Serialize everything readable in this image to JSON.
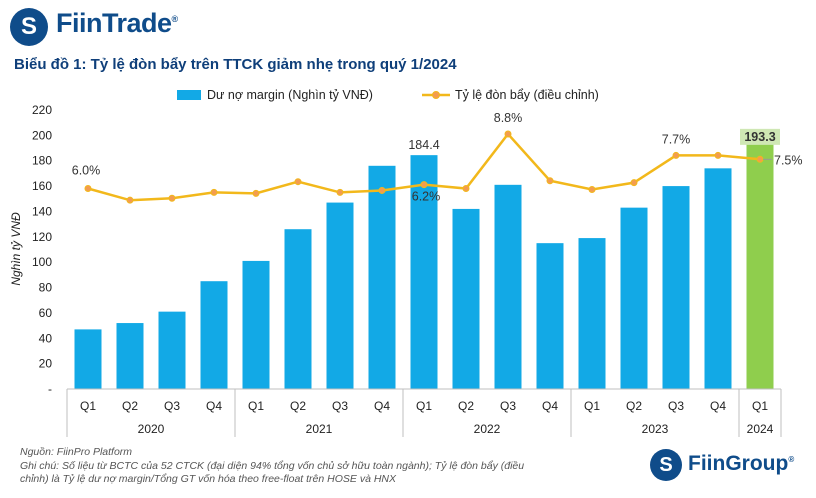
{
  "header": {
    "logo_mark": "S",
    "logo_text": "FiinTrade",
    "logo_reg": "®"
  },
  "chart_data": {
    "type": "bar",
    "title": "Biểu đồ 1: Tỷ lệ đòn bẩy trên TTCK giảm nhẹ trong quý 1/2024",
    "ylabel": "Nghìn tỷ VNĐ",
    "ylim": [
      0,
      220
    ],
    "yticks": [
      "-",
      "20",
      "40",
      "60",
      "80",
      "100",
      "120",
      "140",
      "160",
      "180",
      "200",
      "220"
    ],
    "categories": [
      "Q1",
      "Q2",
      "Q3",
      "Q4",
      "Q1",
      "Q2",
      "Q3",
      "Q4",
      "Q1",
      "Q2",
      "Q3",
      "Q4",
      "Q1",
      "Q2",
      "Q3",
      "Q4",
      "Q1"
    ],
    "years": [
      {
        "label": "2020",
        "count": 4
      },
      {
        "label": "2021",
        "count": 4
      },
      {
        "label": "2022",
        "count": 4
      },
      {
        "label": "2023",
        "count": 4
      },
      {
        "label": "2024",
        "count": 1
      }
    ],
    "series": [
      {
        "name": "Dư nợ margin (Nghìn tỷ VNĐ)",
        "kind": "bar",
        "color": "#12a9e6",
        "highlight_color": "#8fce4d",
        "values": [
          47,
          52,
          61,
          85,
          101,
          126,
          147,
          176,
          184.4,
          142,
          161,
          115,
          119,
          143,
          160,
          174,
          193.3
        ]
      },
      {
        "name": "Tỷ lệ đòn bẩy (điều chỉnh)",
        "kind": "line",
        "axis": "right",
        "color": "#f2b81b",
        "marker_color": "#f39c50",
        "values": [
          6.0,
          5.4,
          5.5,
          5.8,
          5.75,
          6.35,
          5.8,
          5.9,
          6.2,
          6.0,
          8.8,
          6.4,
          5.95,
          6.3,
          7.7,
          7.7,
          7.5
        ]
      }
    ],
    "bar_labels": [
      {
        "index": 8,
        "text": "184.4"
      },
      {
        "index": 16,
        "text": "193.3"
      }
    ],
    "line_labels": [
      {
        "index": 0,
        "text": "6.0%"
      },
      {
        "index": 8,
        "text": "6.2%"
      },
      {
        "index": 10,
        "text": "8.8%"
      },
      {
        "index": 14,
        "text": "7.7%"
      },
      {
        "index": 16,
        "text": "7.5%"
      }
    ]
  },
  "footer": {
    "source": "Nguồn: FiinPro Platform",
    "note_line1": "Ghi chú: Số liệu từ BCTC của 52 CTCK (đại diện 94% tổng vốn chủ sở hữu toàn ngành); Tỷ lệ đòn bẩy (điều",
    "note_line2": "chỉnh) là Tỷ lệ dư nợ margin/Tổng GT vốn hóa theo free-float trên HOSE và HNX",
    "logo_mark": "S",
    "logo_text": "FiinGroup",
    "logo_reg": "®"
  }
}
